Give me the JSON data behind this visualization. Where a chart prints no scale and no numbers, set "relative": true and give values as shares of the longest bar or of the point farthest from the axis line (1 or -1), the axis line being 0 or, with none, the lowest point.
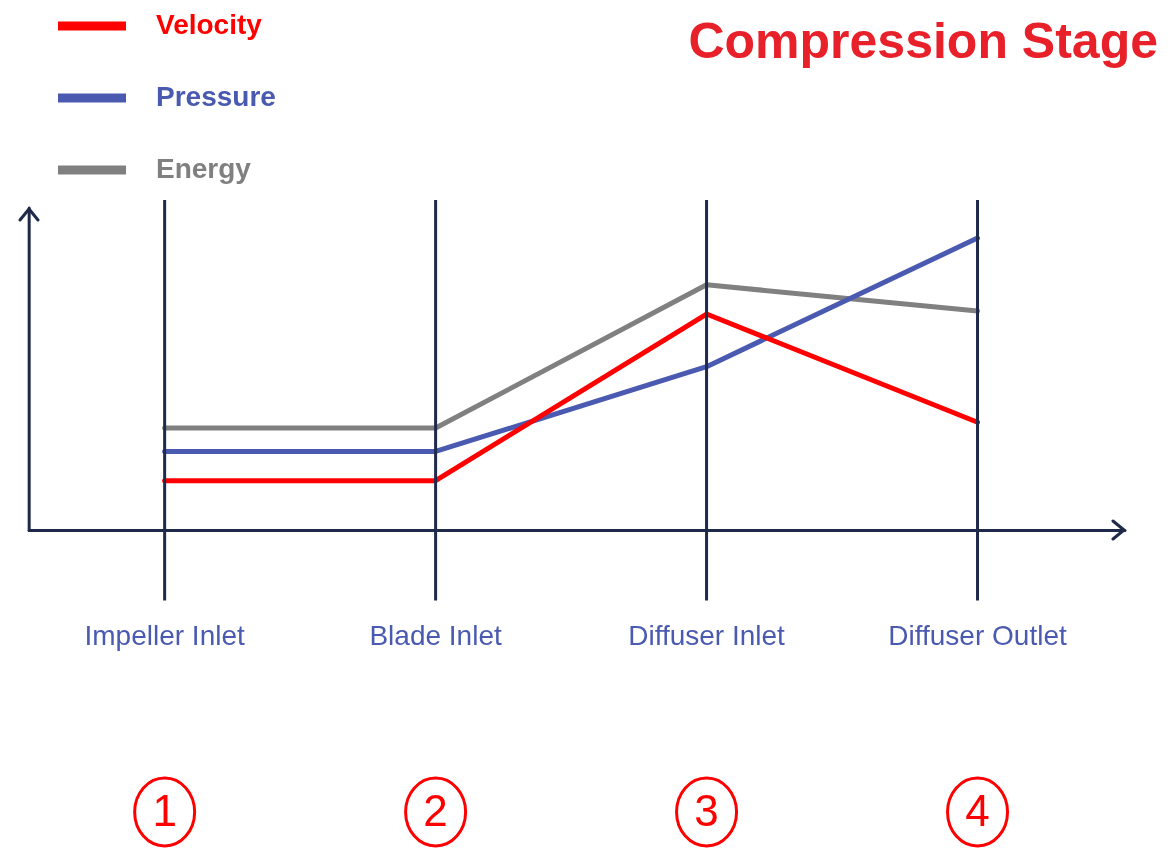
{
  "chart_data": {
    "type": "line",
    "title": "Compression Stage",
    "relative": true,
    "grid": "x",
    "legend": "top left",
    "categories": [
      "Impeller Inlet",
      "Blade Inlet",
      "Diffuser Inlet",
      "Diffuser Outlet"
    ],
    "series": [
      {
        "name": "Velocity",
        "color": "#ff0000",
        "values": [
          0.17,
          0.17,
          0.74,
          0.37
        ]
      },
      {
        "name": "Pressure",
        "color": "#4a5ab0",
        "values": [
          0.27,
          0.27,
          0.56,
          1
        ]
      },
      {
        "name": "Energy",
        "color": "#808080",
        "values": [
          0.35,
          0.35,
          0.84,
          0.75
        ]
      }
    ],
    "annotations": [
      "1",
      "2",
      "3",
      "4"
    ]
  }
}
